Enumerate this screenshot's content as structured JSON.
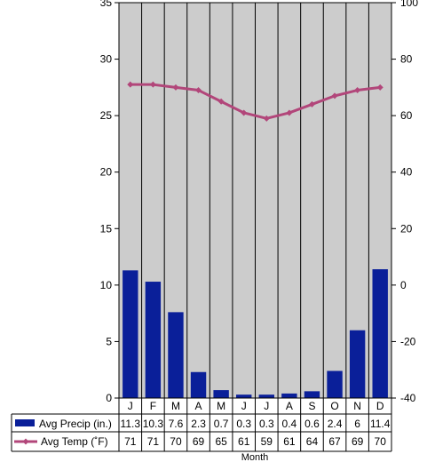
{
  "chart_data": {
    "type": "bar+line",
    "xlabel": "Month",
    "categories": [
      "J",
      "F",
      "M",
      "A",
      "M",
      "J",
      "J",
      "A",
      "S",
      "O",
      "N",
      "D"
    ],
    "series": [
      {
        "name": "Avg Precip (in.)",
        "type": "bar",
        "axis": "left",
        "color": "#0a1f99",
        "values": [
          11.3,
          10.3,
          7.6,
          2.3,
          0.7,
          0.3,
          0.3,
          0.4,
          0.6,
          2.4,
          6,
          11.4
        ],
        "labels": [
          "11.3",
          "10.3",
          "7.6",
          "2.3",
          "0.7",
          "0.3",
          "0.3",
          "0.4",
          "0.6",
          "2.4",
          "6",
          "11.4"
        ]
      },
      {
        "name": "Avg Temp (˚F)",
        "type": "line",
        "axis": "right",
        "color": "#b2467a",
        "values": [
          71,
          71,
          70,
          69,
          65,
          61,
          59,
          61,
          64,
          67,
          69,
          70
        ],
        "labels": [
          "71",
          "71",
          "70",
          "69",
          "65",
          "61",
          "59",
          "61",
          "64",
          "67",
          "69",
          "70"
        ]
      }
    ],
    "y_left": {
      "range": [
        0,
        35
      ],
      "ticks": [
        "0",
        "5",
        "10",
        "15",
        "20",
        "25",
        "30",
        "35"
      ]
    },
    "y_right": {
      "range": [
        -40,
        100
      ],
      "ticks": [
        "-40",
        "-20",
        "0",
        "20",
        "40",
        "60",
        "80",
        "100"
      ]
    },
    "grid": "vertical",
    "plot_background": "#cccccc",
    "legend": "data table below chart"
  }
}
